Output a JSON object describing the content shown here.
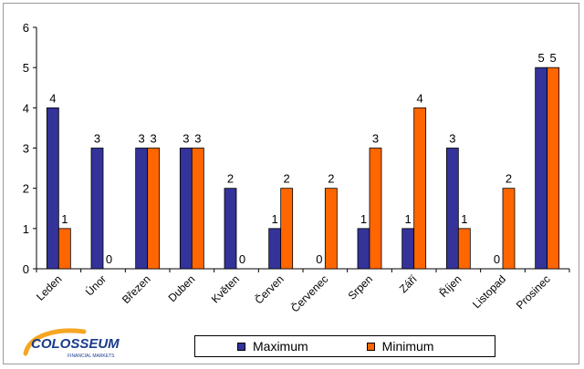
{
  "chart_data": {
    "type": "bar",
    "categories": [
      "Leden",
      "Únor",
      "Březen",
      "Duben",
      "Květen",
      "Červen",
      "Červenec",
      "Srpen",
      "Září",
      "Říjen",
      "Listopad",
      "Prosinec"
    ],
    "series": [
      {
        "name": "Maximum",
        "values": [
          4,
          3,
          3,
          3,
          2,
          1,
          0,
          1,
          1,
          3,
          0,
          5
        ],
        "color": "#333399"
      },
      {
        "name": "Minimum",
        "values": [
          1,
          0,
          3,
          3,
          0,
          2,
          2,
          3,
          4,
          1,
          2,
          5
        ],
        "color": "#ff6600"
      }
    ],
    "ylim": [
      0,
      6
    ],
    "yticks": [
      0,
      1,
      2,
      3,
      4,
      5,
      6
    ],
    "grid": false,
    "legend_position": "bottom",
    "data_labels": true,
    "title": "",
    "xlabel": "",
    "ylabel": ""
  },
  "logo": {
    "name": "COLOSSEUM",
    "tagline": "FINANCIAL MARKETS",
    "colors": {
      "text": "#1a3b8c",
      "swoosh": "#f5a623"
    }
  }
}
